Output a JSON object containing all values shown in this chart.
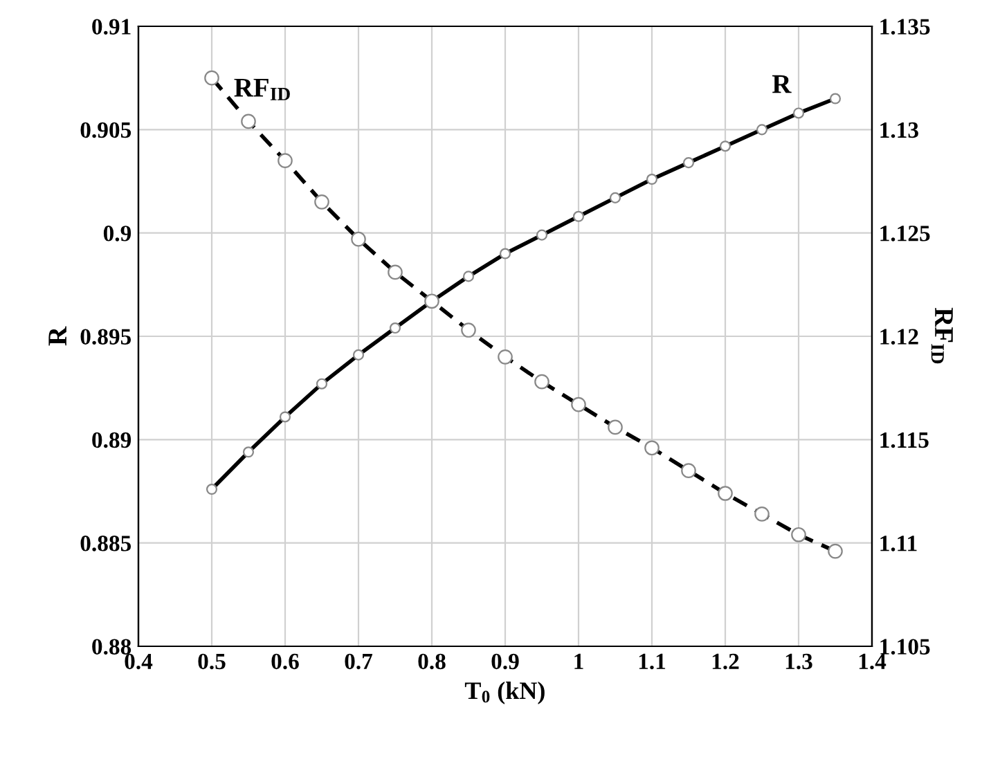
{
  "chart_data": {
    "type": "line",
    "xlabel": "T$_{0}$ (kN)",
    "ylabel": "R",
    "y2label": "RF$_{ID}$",
    "x": [
      0.5,
      0.55,
      0.6,
      0.65,
      0.7,
      0.75,
      0.8,
      0.85,
      0.9,
      0.95,
      1.0,
      1.05,
      1.1,
      1.15,
      1.2,
      1.25,
      1.3,
      1.35
    ],
    "series": [
      {
        "name": "R",
        "color": "#000000",
        "line_style": "solid",
        "values": [
          0.8876,
          0.8894,
          0.8911,
          0.8927,
          0.8941,
          0.8954,
          0.8967,
          0.8979,
          0.899,
          0.8999,
          0.9008,
          0.9017,
          0.9026,
          0.9034,
          0.9042,
          0.905,
          0.9058,
          0.9065
        ]
      },
      {
        "name": "RF$_{ID}$",
        "color": "#000000",
        "line_style": "dashed",
        "axis": "y2",
        "values": [
          1.1325,
          1.1304,
          1.1285,
          1.1265,
          1.1247,
          1.1231,
          1.1217,
          1.1203,
          1.119,
          1.1178,
          1.1167,
          1.1156,
          1.1146,
          1.1135,
          1.1124,
          1.1114,
          1.1104,
          1.1096
        ]
      }
    ],
    "marker": "circle",
    "grid": true,
    "legend": false,
    "xlim": [
      0.4,
      1.4
    ],
    "xticks": [
      0.4,
      0.5,
      0.6,
      0.7,
      0.8,
      0.9,
      1,
      1.1,
      1.2,
      1.3,
      1.4
    ],
    "ylim": [
      0.88,
      0.91
    ],
    "yticks": [
      0.88,
      0.885,
      0.89,
      0.895,
      0.9,
      0.905,
      0.91
    ],
    "y2lim": [
      1.105,
      1.135
    ],
    "y2ticks": [
      1.105,
      1.11,
      1.115,
      1.12,
      1.125,
      1.13,
      1.135
    ]
  }
}
